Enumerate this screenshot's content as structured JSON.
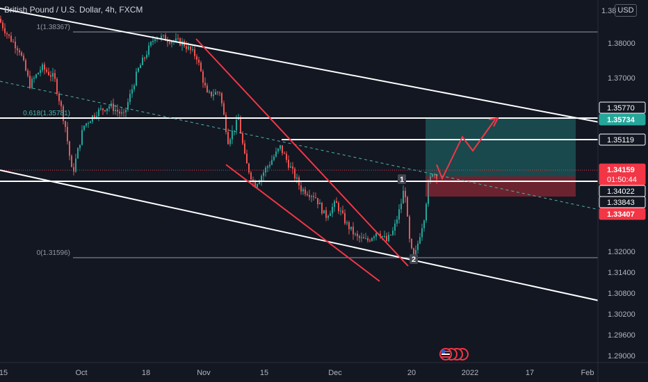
{
  "header": {
    "title": "British Pound / U.S. Dollar, 4h, FXCM",
    "currency_button": "USD"
  },
  "price_axis": {
    "ticks": [
      "1.38000",
      "1.37000",
      "1.32000",
      "1.31400",
      "1.30800",
      "1.30200",
      "1.29600",
      "1.29000"
    ],
    "top_cut": "1.38"
  },
  "time_axis": {
    "labels": [
      "15",
      "Oct",
      "18",
      "Nov",
      "15",
      "Dec",
      "20",
      "2022",
      "17",
      "Feb"
    ]
  },
  "fib_levels": [
    {
      "label": "1(1.38367)"
    },
    {
      "label": "0.618(1.35781)"
    },
    {
      "label": "0(1.31596)"
    }
  ],
  "price_tags": [
    {
      "value": "1.35770",
      "style": "outline"
    },
    {
      "value": "1.35734",
      "style": "teal"
    },
    {
      "value": "1.35119",
      "style": "outline"
    },
    {
      "value": "1.34159",
      "style": "red",
      "sub": "01:50:44"
    },
    {
      "value": "1.34022",
      "style": "outline"
    },
    {
      "value": "1.33843",
      "style": "outline"
    },
    {
      "value": "1.33407",
      "style": "red"
    }
  ],
  "markers": [
    "1",
    "2"
  ],
  "colors": {
    "bg": "#131722",
    "up": "#26a69a",
    "down": "#ef5350",
    "teal": "#26a69a",
    "red": "#f23645"
  }
}
